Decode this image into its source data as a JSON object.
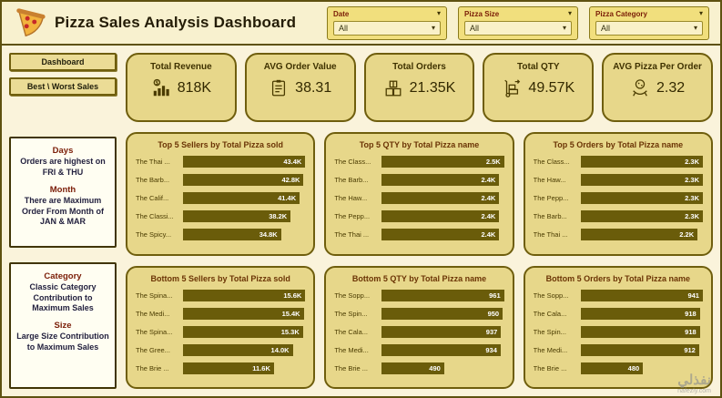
{
  "header": {
    "title": "Pizza Sales Analysis Dashboard"
  },
  "filters": [
    {
      "label": "Date",
      "value": "All"
    },
    {
      "label": "Pizza Size",
      "value": "All"
    },
    {
      "label": "Pizza Category",
      "value": "All"
    }
  ],
  "sidebar": {
    "buttons": [
      {
        "label": "Dashboard"
      },
      {
        "label": "Best \\ Worst Sales"
      }
    ],
    "boxes": [
      {
        "sections": [
          {
            "heading": "Days",
            "text": "Orders are highest on FRI & THU"
          },
          {
            "heading": "Month",
            "text": "There are Maximum Order From Month of JAN & MAR"
          }
        ]
      },
      {
        "sections": [
          {
            "heading": "Category",
            "text": "Classic Category Contribution to Maximum Sales"
          },
          {
            "heading": "Size",
            "text": "Large Size Contribution to Maximum Sales"
          }
        ]
      }
    ]
  },
  "kpis": [
    {
      "label": "Total Revenue",
      "value": "818K",
      "icon": "revenue-icon"
    },
    {
      "label": "AVG Order Value",
      "value": "38.31",
      "icon": "avg-order-value-icon"
    },
    {
      "label": "Total Orders",
      "value": "21.35K",
      "icon": "orders-icon"
    },
    {
      "label": "Total QTY",
      "value": "49.57K",
      "icon": "qty-icon"
    },
    {
      "label": "AVG Pizza Per Order",
      "value": "2.32",
      "icon": "pizza-per-order-icon"
    }
  ],
  "chart_data": [
    {
      "type": "bar",
      "orientation": "horizontal",
      "title": "Top 5 Sellers by Total Pizza sold",
      "categories": [
        "The Thai ...",
        "The Barb...",
        "The Calif...",
        "The Classi...",
        "The Spicy..."
      ],
      "values": [
        43400,
        42800,
        41400,
        38200,
        34800
      ],
      "value_labels": [
        "43.4K",
        "42.8K",
        "41.4K",
        "38.2K",
        "34.8K"
      ]
    },
    {
      "type": "bar",
      "orientation": "horizontal",
      "title": "Top 5 QTY by Total Pizza name",
      "categories": [
        "The Class...",
        "The Barb...",
        "The Haw...",
        "The Pepp...",
        "The Thai ..."
      ],
      "values": [
        2500,
        2400,
        2400,
        2400,
        2400
      ],
      "value_labels": [
        "2.5K",
        "2.4K",
        "2.4K",
        "2.4K",
        "2.4K"
      ]
    },
    {
      "type": "bar",
      "orientation": "horizontal",
      "title": "Top 5 Orders by Total Pizza name",
      "categories": [
        "The Class...",
        "The Haw...",
        "The Pepp...",
        "The Barb...",
        "The Thai ..."
      ],
      "values": [
        2300,
        2300,
        2300,
        2300,
        2200
      ],
      "value_labels": [
        "2.3K",
        "2.3K",
        "2.3K",
        "2.3K",
        "2.2K"
      ]
    },
    {
      "type": "bar",
      "orientation": "horizontal",
      "title": "Bottom 5 Sellers by Total Pizza sold",
      "categories": [
        "The Spina...",
        "The Medi...",
        "The Spina...",
        "The Gree...",
        "The Brie ..."
      ],
      "values": [
        15600,
        15400,
        15300,
        14000,
        11600
      ],
      "value_labels": [
        "15.6K",
        "15.4K",
        "15.3K",
        "14.0K",
        "11.6K"
      ]
    },
    {
      "type": "bar",
      "orientation": "horizontal",
      "title": "Bottom 5 QTY by Total Pizza name",
      "categories": [
        "The Sopp...",
        "The Spin...",
        "The Cala...",
        "The Medi...",
        "The Brie ..."
      ],
      "values": [
        961,
        950,
        937,
        934,
        490
      ],
      "value_labels": [
        "961",
        "950",
        "937",
        "934",
        "490"
      ]
    },
    {
      "type": "bar",
      "orientation": "horizontal",
      "title": "Bottom 5 Orders by Total Pizza name",
      "categories": [
        "The Sopp...",
        "The Cala...",
        "The Spin...",
        "The Medi...",
        "The Brie ..."
      ],
      "values": [
        941,
        918,
        918,
        912,
        480
      ],
      "value_labels": [
        "941",
        "918",
        "918",
        "912",
        "480"
      ]
    }
  ],
  "watermark": {
    "line1": "نفذلي",
    "line2": "nafezly.com"
  }
}
